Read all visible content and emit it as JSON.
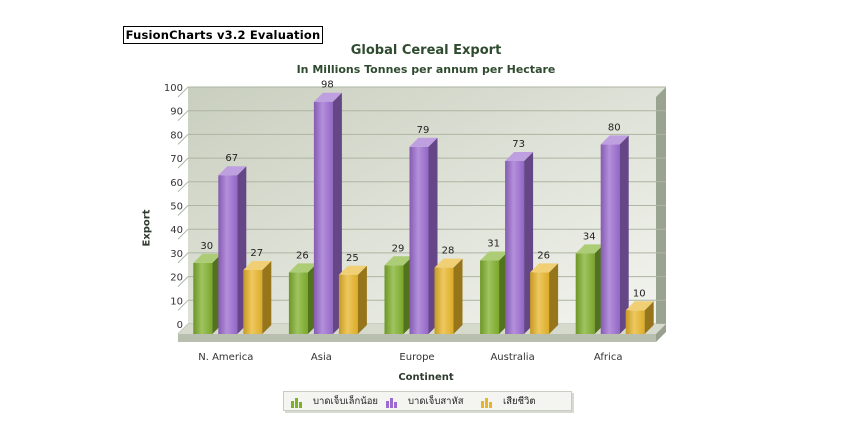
{
  "evaluation_label": "FusionCharts v3.2 Evaluation",
  "chart_data": {
    "type": "bar",
    "title": "Global Cereal Export",
    "subtitle": "In Millions Tonnes per annum per Hectare",
    "xlabel": "Continent",
    "ylabel": "Export",
    "ylim": [
      0,
      100
    ],
    "yticks": [
      0,
      10,
      20,
      30,
      40,
      50,
      60,
      70,
      80,
      90,
      100
    ],
    "categories": [
      "N. America",
      "Asia",
      "Europe",
      "Australia",
      "Africa"
    ],
    "series": [
      {
        "name": "บาดเจ็บเล็กน้อย",
        "color": "#7fb02c",
        "values": [
          30,
          26,
          29,
          31,
          34
        ]
      },
      {
        "name": "บาดเจ็บสาหัส",
        "color": "#9b6bd0",
        "values": [
          67,
          98,
          79,
          73,
          80
        ]
      },
      {
        "name": "เสียชีวิต",
        "color": "#e8b52a",
        "values": [
          27,
          25,
          28,
          26,
          10
        ]
      }
    ],
    "grid": true,
    "legend": "bottom"
  }
}
